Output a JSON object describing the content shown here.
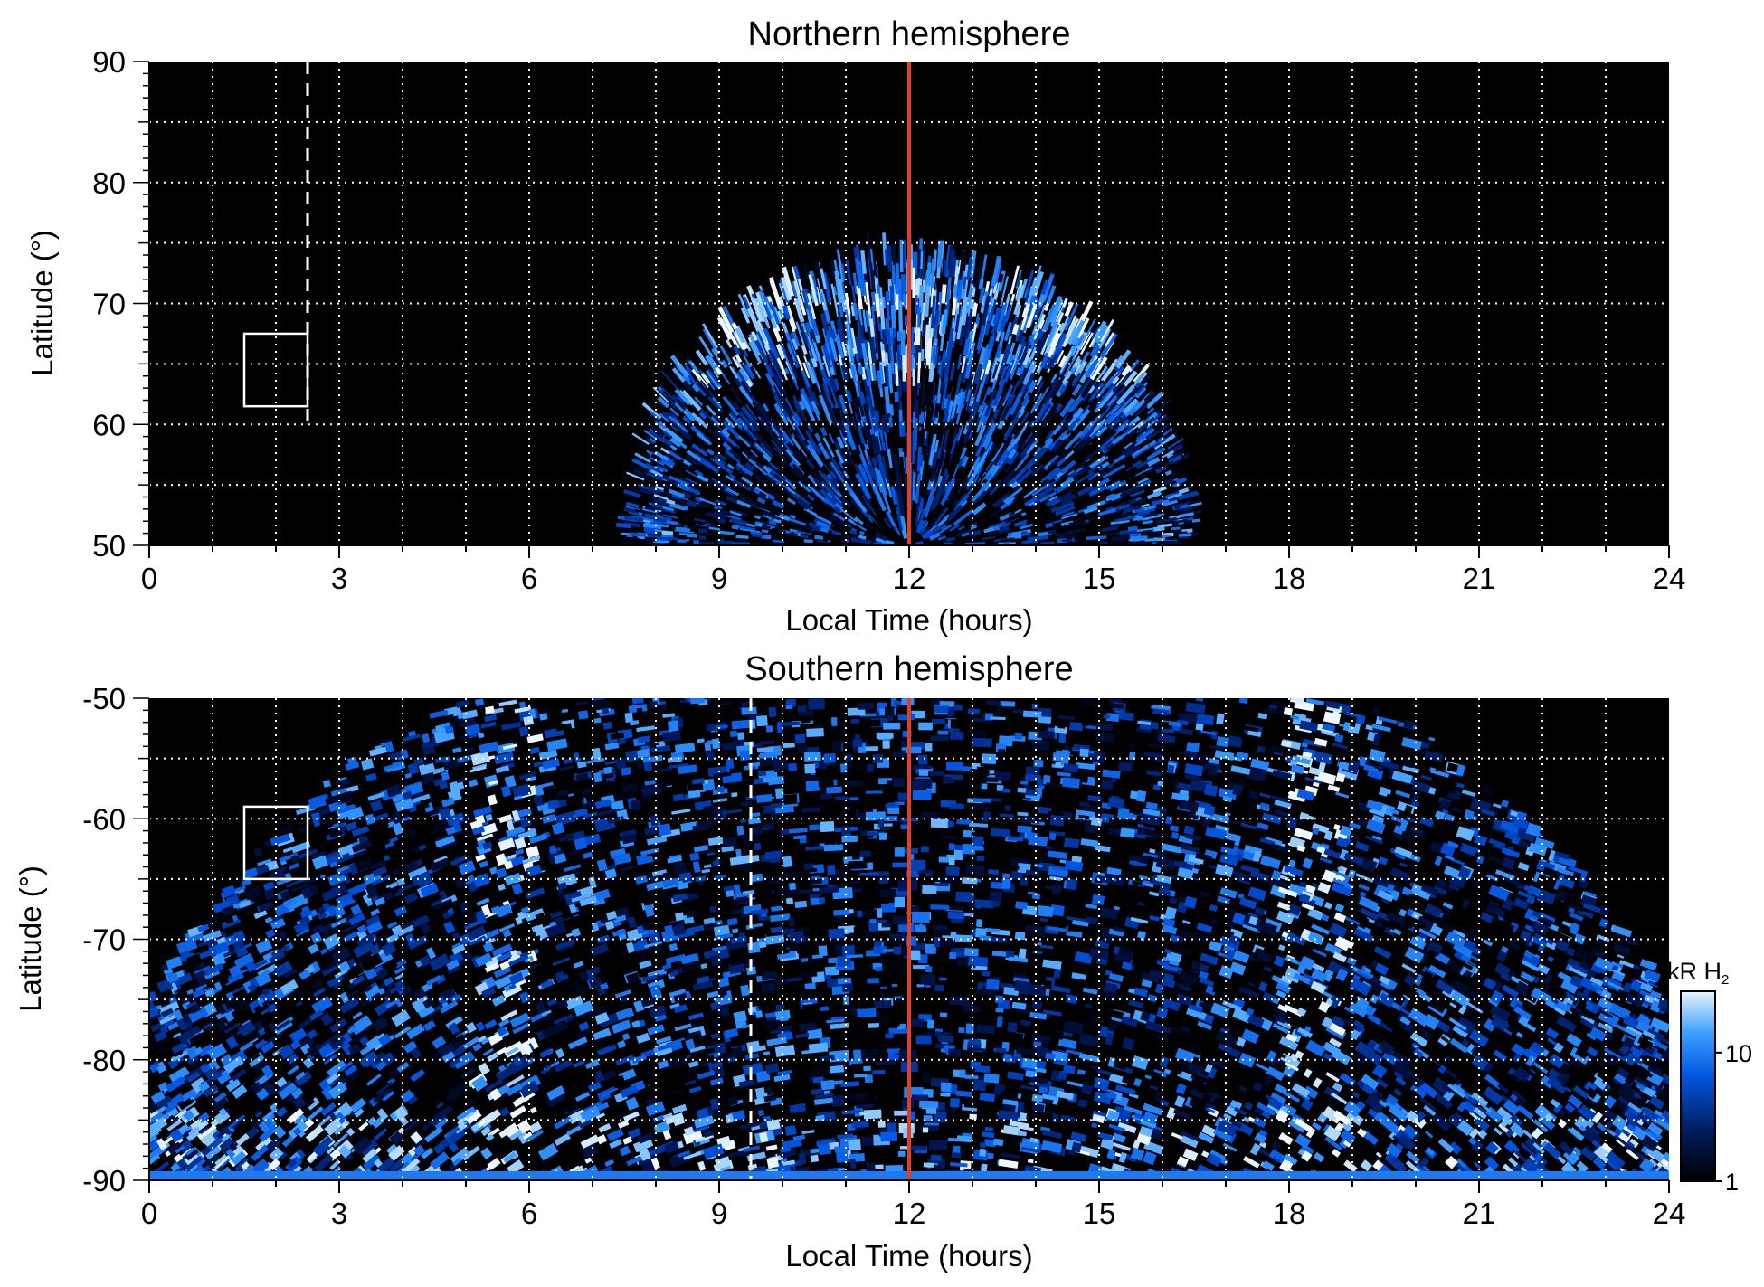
{
  "chart_data": [
    {
      "type": "heatmap",
      "title": "Northern hemisphere",
      "xlabel": "Local Time (hours)",
      "ylabel": "Latitude (°)",
      "xlim": [
        0,
        24
      ],
      "ylim": [
        50,
        90
      ],
      "xticks": [
        "0",
        "3",
        "6",
        "9",
        "12",
        "15",
        "18",
        "21",
        "24"
      ],
      "yticks": [
        "50",
        "60",
        "70",
        "80",
        "90"
      ],
      "grid": true,
      "background_color": "#000000",
      "reference_line": {
        "x": 12,
        "color": "#e0401e"
      },
      "dashed_line": {
        "x": 2.5,
        "from_lat": 60,
        "to_lat": 90,
        "color": "#ffffff"
      },
      "box": {
        "x0": 1.5,
        "x1": 2.5,
        "y0": 61.5,
        "y1": 67.5,
        "color": "#ffffff"
      },
      "emission_region": {
        "lt_min": 7.7,
        "lt_max": 16.6,
        "center_lt": 12,
        "peak_lat": 73.5,
        "base_lat": 50,
        "bright_band_lat": [
          63,
          71
        ]
      }
    },
    {
      "type": "heatmap",
      "title": "Southern hemisphere",
      "xlabel": "Local Time (hours)",
      "ylabel": "Latitude (°)",
      "xlim": [
        0,
        24
      ],
      "ylim": [
        -90,
        -50
      ],
      "xticks": [
        "0",
        "3",
        "6",
        "9",
        "12",
        "15",
        "18",
        "21",
        "24"
      ],
      "yticks": [
        "-50",
        "-60",
        "-70",
        "-80",
        "-90"
      ],
      "grid": true,
      "background_color": "#000000",
      "reference_line": {
        "x": 12,
        "color": "#e0401e"
      },
      "dashed_line": {
        "x": 9.5,
        "from_lat": -90,
        "to_lat": -50,
        "color": "#ffffff"
      },
      "box": {
        "x0": 1.5,
        "x1": 2.5,
        "y0": -65,
        "y1": -59,
        "color": "#ffffff"
      },
      "emission_region": {
        "lt_min": 0,
        "lt_max": 24,
        "dawn_arc_lt": 5.6,
        "dusk_arc_lt": 18.4,
        "edge_lat": -74.5
      }
    }
  ],
  "colorbar": {
    "label": "kR H",
    "label_subscript": "2",
    "ticks": [
      "1",
      "10"
    ],
    "scale": "log",
    "range": [
      1,
      30
    ],
    "colors": [
      "#000000",
      "#001a55",
      "#0055dd",
      "#3ba0ff",
      "#e8f4ff"
    ]
  }
}
